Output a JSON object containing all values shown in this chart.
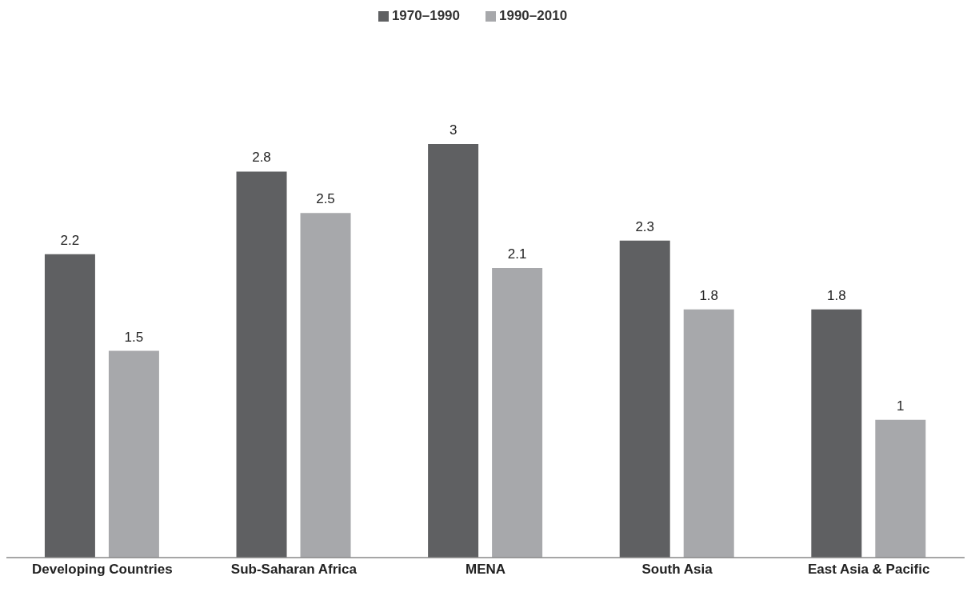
{
  "chart_data": {
    "type": "bar",
    "categories": [
      "Developing Countries",
      "Sub-Saharan Africa",
      "MENA",
      "South Asia",
      "East Asia & Pacific"
    ],
    "series": [
      {
        "name": "1970–1990",
        "color": "#5f6062",
        "values": [
          2.2,
          2.8,
          3,
          2.3,
          1.8
        ]
      },
      {
        "name": "1990–2010",
        "color": "#a7a8ab",
        "values": [
          1.5,
          2.5,
          2.1,
          1.8,
          1
        ]
      }
    ],
    "data_labels": true,
    "legend": "top",
    "grid": false
  }
}
